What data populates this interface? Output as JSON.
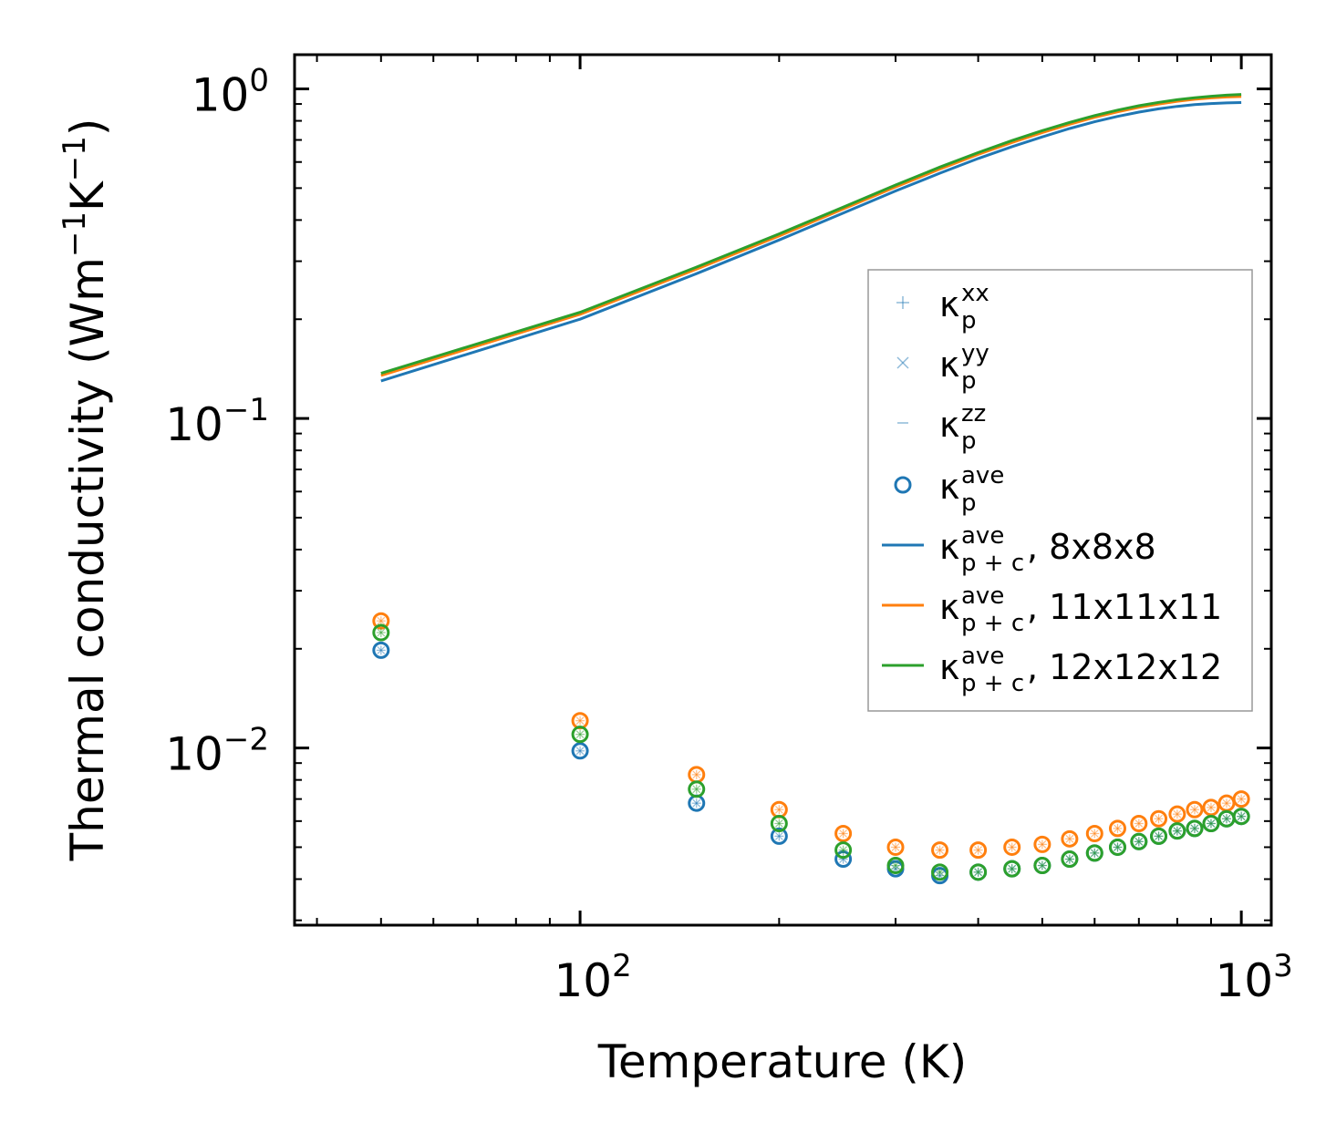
{
  "chart_data": {
    "type": "scatter",
    "xscale": "log",
    "yscale": "log",
    "xlabel": "Temperature (K)",
    "ylabel": {
      "main": "Thermal conductivity (Wm",
      "sup1": "−1",
      "mid": "K",
      "sup2": "−1",
      "end": ")"
    },
    "xlim": [
      37,
      1110
    ],
    "ylim": [
      0.0029,
      1.27
    ],
    "xticks": [
      {
        "value": 100,
        "base": "10",
        "exp": "2"
      },
      {
        "value": 1000,
        "base": "10",
        "exp": "3"
      }
    ],
    "yticks": [
      {
        "value": 0.01,
        "base": "10",
        "exp": "−2"
      },
      {
        "value": 0.1,
        "base": "10",
        "exp": "−1"
      },
      {
        "value": 1,
        "base": "10",
        "exp": "0"
      }
    ],
    "x": [
      50,
      100,
      150,
      200,
      250,
      300,
      350,
      400,
      450,
      500,
      550,
      600,
      650,
      700,
      750,
      800,
      850,
      900,
      950,
      1000
    ],
    "series": [
      {
        "name": "8x8x8",
        "color": "#1f77b4",
        "kappa_p": [
          0.0198,
          0.0098,
          0.0068,
          0.0054,
          0.0046,
          0.0043,
          0.0041,
          0.0042,
          0.0043,
          0.0044,
          0.0046,
          0.0048,
          0.005,
          0.0052,
          0.0054,
          0.0056,
          0.0057,
          0.0059,
          0.0061,
          0.0062
        ],
        "kappa_pc": [
          0.13,
          0.2,
          0.275,
          0.348,
          0.42,
          0.49,
          0.555,
          0.615,
          0.668,
          0.715,
          0.758,
          0.795,
          0.825,
          0.85,
          0.87,
          0.885,
          0.896,
          0.903,
          0.907,
          0.909
        ]
      },
      {
        "name": "11x11x11",
        "color": "#ff7f0e",
        "kappa_p": [
          0.0243,
          0.0121,
          0.0083,
          0.0065,
          0.0055,
          0.005,
          0.0049,
          0.0049,
          0.005,
          0.0051,
          0.0053,
          0.0055,
          0.0057,
          0.0059,
          0.0061,
          0.0063,
          0.0065,
          0.0066,
          0.0068,
          0.007
        ],
        "kappa_pc": [
          0.135,
          0.207,
          0.284,
          0.358,
          0.432,
          0.504,
          0.571,
          0.633,
          0.688,
          0.737,
          0.781,
          0.82,
          0.852,
          0.879,
          0.9,
          0.917,
          0.93,
          0.939,
          0.945,
          0.948
        ]
      },
      {
        "name": "12x12x12",
        "color": "#2ca02c",
        "kappa_p": [
          0.0224,
          0.011,
          0.0075,
          0.0059,
          0.0049,
          0.0044,
          0.0042,
          0.0042,
          0.0043,
          0.0044,
          0.0046,
          0.0048,
          0.005,
          0.0052,
          0.0054,
          0.0056,
          0.0057,
          0.0059,
          0.0061,
          0.0062
        ],
        "kappa_pc": [
          0.137,
          0.21,
          0.288,
          0.363,
          0.438,
          0.511,
          0.579,
          0.641,
          0.697,
          0.747,
          0.791,
          0.83,
          0.862,
          0.889,
          0.91,
          0.927,
          0.94,
          0.95,
          0.957,
          0.962
        ]
      }
    ],
    "legend": {
      "position": "center-right",
      "entries": [
        {
          "marker": "plus",
          "color": "#1f77b4",
          "base": "κ",
          "sub": "p",
          "sup": "xx",
          "suffix": ""
        },
        {
          "marker": "x",
          "color": "#1f77b4",
          "base": "κ",
          "sub": "p",
          "sup": "yy",
          "suffix": ""
        },
        {
          "marker": "hline",
          "color": "#1f77b4",
          "base": "κ",
          "sub": "p",
          "sup": "zz",
          "suffix": ""
        },
        {
          "marker": "circle",
          "color": "#1f77b4",
          "base": "κ",
          "sub": "p",
          "sup": "ave",
          "suffix": ""
        },
        {
          "marker": "line",
          "color": "#1f77b4",
          "base": "κ",
          "sub": "p + c",
          "sup": "ave",
          "suffix": ", 8x8x8"
        },
        {
          "marker": "line",
          "color": "#ff7f0e",
          "base": "κ",
          "sub": "p + c",
          "sup": "ave",
          "suffix": ", 11x11x11"
        },
        {
          "marker": "line",
          "color": "#2ca02c",
          "base": "κ",
          "sub": "p + c",
          "sup": "ave",
          "suffix": ", 12x12x12"
        }
      ]
    }
  }
}
